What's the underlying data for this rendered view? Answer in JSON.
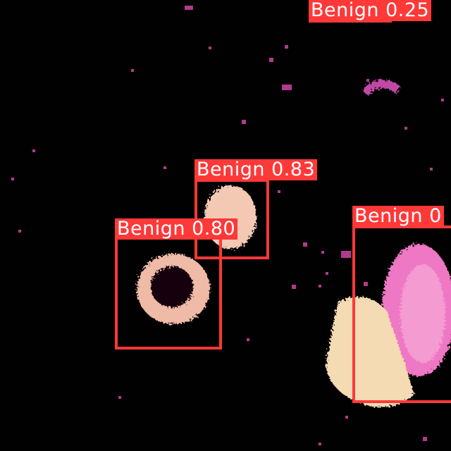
{
  "colors": {
    "box": "#ff3838",
    "label_text": "#ffffff",
    "background": "#020102",
    "cell_light": "#f2cdb1",
    "cell_pink": "#ef6fbf",
    "speckle": "#b13a8c"
  },
  "detections": [
    {
      "class": "Benign",
      "confidence": "0.25",
      "caption": "Benign 0.25"
    },
    {
      "class": "Benign",
      "confidence": "0.83",
      "caption": "Benign 0.83"
    },
    {
      "class": "Benign",
      "confidence": "0.80",
      "caption": "Benign 0.80"
    },
    {
      "class": "Benign",
      "confidence": "0",
      "caption": "Benign 0"
    }
  ]
}
